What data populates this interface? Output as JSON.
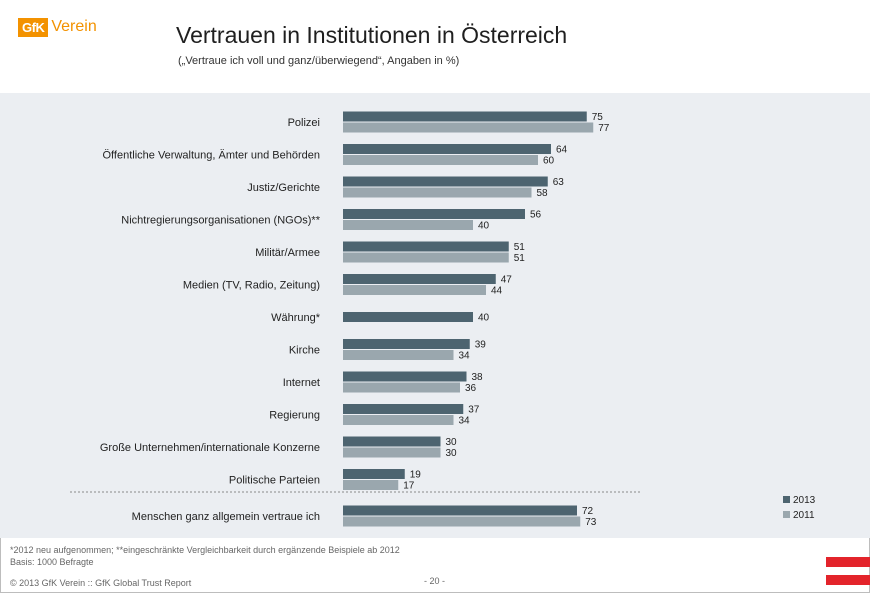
{
  "header": {
    "logo_mark": "GfK",
    "logo_text": "Verein",
    "title": "Vertrauen in Institutionen in Österreich",
    "subtitle": "(„Vertraue ich voll und ganz/überwiegend“, Angaben in %)"
  },
  "chart_data": {
    "type": "bar",
    "orientation": "horizontal",
    "categories": [
      "Polizei",
      "Öffentliche Verwaltung, Ämter und Behörden",
      "Justiz/Gerichte",
      "Nichtregierungsorganisationen (NGOs)**",
      "Militär/Armee",
      "Medien (TV, Radio, Zeitung)",
      "Währung*",
      "Kirche",
      "Internet",
      "Regierung",
      "Große Unternehmen/internationale Konzerne",
      "Politische Parteien",
      "Menschen ganz allgemein vertraue ich"
    ],
    "series": [
      {
        "name": "2013",
        "color": "#4d6470",
        "values": [
          75,
          64,
          63,
          56,
          51,
          47,
          40,
          39,
          38,
          37,
          30,
          19,
          72
        ]
      },
      {
        "name": "2011",
        "color": "#9aa7ae",
        "values": [
          77,
          60,
          58,
          40,
          51,
          44,
          null,
          34,
          36,
          34,
          30,
          17,
          73
        ]
      }
    ],
    "xlim": [
      0,
      100
    ],
    "grid": false,
    "legend_position": "bottom-right",
    "separator_before_last": true
  },
  "footer": {
    "note": "*2012 neu aufgenommen; **eingeschränkte Vergleichbarkeit durch ergänzende Beispiele ab 2012",
    "basis": "Basis: 1000 Befragte",
    "copyright": "© 2013 GfK Verein :: GfK Global Trust Report",
    "page": "- 20 -"
  },
  "colors": {
    "flag_red": "#e3242b",
    "panel_bg": "#ebeef2",
    "brand_orange": "#f39200"
  }
}
